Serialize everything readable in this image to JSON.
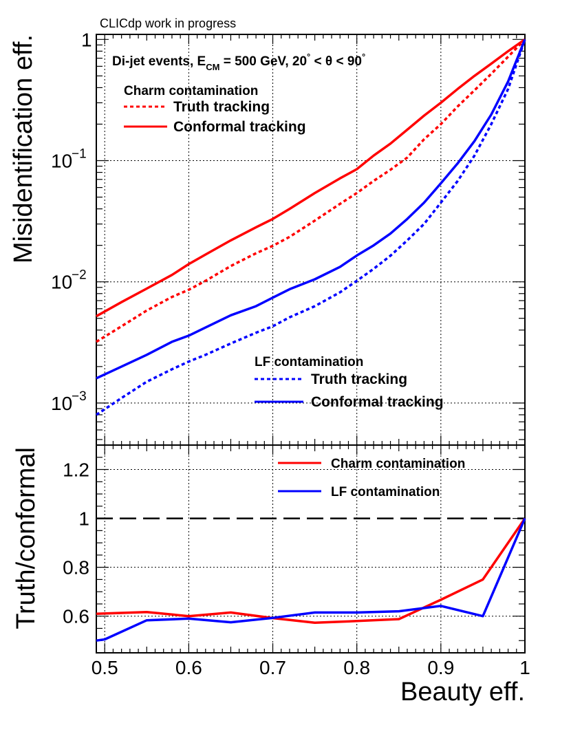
{
  "header": {
    "note": "CLICdp work in progress"
  },
  "colors": {
    "charm": "#ff0000",
    "lf": "#0000ff",
    "axis": "#000000",
    "grid": "#000000"
  },
  "chart_data": [
    {
      "type": "line",
      "panel": "top",
      "yscale": "log",
      "xlim": [
        0.49,
        1.0
      ],
      "ylim": [
        0.00045,
        1.1
      ],
      "xlabel": "",
      "ylabel": "Misidentification eff.",
      "grid": true,
      "x_ticks": [
        0.5,
        0.6,
        0.7,
        0.8,
        0.9,
        1.0
      ],
      "y_tick_labels": [
        {
          "value": 1,
          "mantissa": "1",
          "exp": ""
        },
        {
          "value": 0.1,
          "mantissa": "10",
          "exp": "−1"
        },
        {
          "value": 0.01,
          "mantissa": "10",
          "exp": "−2"
        },
        {
          "value": 0.001,
          "mantissa": "10",
          "exp": "−3"
        }
      ],
      "info": {
        "prefix": "Di-jet events, E",
        "sub": "CM",
        "mid": " = 500 GeV, 20",
        "deg1": "°",
        "lt": " < θ < 90",
        "deg2": "°"
      },
      "legends": [
        {
          "title": "Charm contamination",
          "position": "top-left",
          "entries": [
            {
              "label": "Truth tracking",
              "color": "#ff0000",
              "dashed": true
            },
            {
              "label": "Conformal tracking",
              "color": "#ff0000",
              "dashed": false
            }
          ]
        },
        {
          "title": "LF contamination",
          "position": "bottom-center",
          "entries": [
            {
              "label": "Truth tracking",
              "color": "#0000ff",
              "dashed": true
            },
            {
              "label": "Conformal tracking",
              "color": "#0000ff",
              "dashed": false
            }
          ]
        }
      ],
      "series": [
        {
          "name": "Charm conformal tracking",
          "color": "#ff0000",
          "dashed": false,
          "x": [
            0.49,
            0.52,
            0.55,
            0.58,
            0.6,
            0.62,
            0.65,
            0.68,
            0.7,
            0.72,
            0.75,
            0.78,
            0.8,
            0.82,
            0.84,
            0.86,
            0.88,
            0.9,
            0.92,
            0.94,
            0.96,
            0.98,
            1.0
          ],
          "y": [
            0.0052,
            0.0068,
            0.0088,
            0.0114,
            0.014,
            0.0168,
            0.022,
            0.0282,
            0.033,
            0.04,
            0.054,
            0.0715,
            0.085,
            0.11,
            0.138,
            0.18,
            0.235,
            0.3,
            0.39,
            0.5,
            0.63,
            0.8,
            1.0
          ]
        },
        {
          "name": "Charm truth tracking",
          "color": "#ff0000",
          "dashed": true,
          "x": [
            0.49,
            0.52,
            0.55,
            0.58,
            0.6,
            0.62,
            0.65,
            0.68,
            0.7,
            0.72,
            0.75,
            0.78,
            0.8,
            0.82,
            0.84,
            0.86,
            0.88,
            0.9,
            0.92,
            0.94,
            0.96,
            0.98,
            1.0
          ],
          "y": [
            0.0032,
            0.0043,
            0.0058,
            0.0075,
            0.0086,
            0.0102,
            0.0135,
            0.0172,
            0.0198,
            0.0235,
            0.032,
            0.044,
            0.054,
            0.068,
            0.084,
            0.106,
            0.15,
            0.2,
            0.28,
            0.38,
            0.52,
            0.72,
            1.0
          ]
        },
        {
          "name": "LF conformal tracking",
          "color": "#0000ff",
          "dashed": false,
          "x": [
            0.49,
            0.52,
            0.55,
            0.58,
            0.6,
            0.62,
            0.65,
            0.68,
            0.7,
            0.72,
            0.75,
            0.78,
            0.8,
            0.82,
            0.84,
            0.86,
            0.88,
            0.9,
            0.92,
            0.94,
            0.96,
            0.98,
            1.0
          ],
          "y": [
            0.0016,
            0.002,
            0.0025,
            0.0032,
            0.0036,
            0.0042,
            0.0053,
            0.0063,
            0.0074,
            0.0087,
            0.0105,
            0.0133,
            0.0165,
            0.02,
            0.025,
            0.033,
            0.045,
            0.065,
            0.095,
            0.145,
            0.24,
            0.45,
            1.0
          ]
        },
        {
          "name": "LF truth tracking",
          "color": "#0000ff",
          "dashed": true,
          "x": [
            0.49,
            0.52,
            0.55,
            0.58,
            0.6,
            0.62,
            0.65,
            0.68,
            0.7,
            0.72,
            0.75,
            0.78,
            0.8,
            0.82,
            0.84,
            0.86,
            0.88,
            0.9,
            0.92,
            0.94,
            0.96,
            0.98,
            1.0
          ],
          "y": [
            0.0008,
            0.0011,
            0.0015,
            0.0019,
            0.0022,
            0.0025,
            0.0031,
            0.0038,
            0.0043,
            0.0051,
            0.0063,
            0.0082,
            0.0102,
            0.0128,
            0.0164,
            0.022,
            0.03,
            0.045,
            0.068,
            0.11,
            0.2,
            0.39,
            1.0
          ]
        }
      ]
    },
    {
      "type": "line",
      "panel": "bottom",
      "yscale": "linear",
      "xlim": [
        0.49,
        1.0
      ],
      "ylim": [
        0.45,
        1.3
      ],
      "xlabel": "Beauty eff.",
      "ylabel": "Truth/conformal",
      "grid": true,
      "x_ticks": [
        0.5,
        0.6,
        0.7,
        0.8,
        0.9,
        1.0
      ],
      "x_tick_labels": [
        "0.5",
        "0.6",
        "0.7",
        "0.8",
        "0.9",
        "1"
      ],
      "y_ticks": [
        0.6,
        0.8,
        1.0,
        1.2
      ],
      "y_tick_labels": [
        "0.6",
        "0.8",
        "1",
        "1.2"
      ],
      "reference_line": 1.0,
      "legend": [
        {
          "label": "Charm contamination",
          "color": "#ff0000"
        },
        {
          "label": "LF contamination",
          "color": "#0000ff"
        }
      ],
      "series": [
        {
          "name": "Charm contamination",
          "color": "#ff0000",
          "x": [
            0.49,
            0.55,
            0.6,
            0.65,
            0.7,
            0.75,
            0.8,
            0.85,
            0.9,
            0.95,
            1.0
          ],
          "y": [
            0.61,
            0.617,
            0.6,
            0.615,
            0.592,
            0.573,
            0.58,
            0.588,
            0.667,
            0.75,
            1.0
          ]
        },
        {
          "name": "LF contamination",
          "color": "#0000ff",
          "x": [
            0.49,
            0.5,
            0.55,
            0.6,
            0.65,
            0.7,
            0.75,
            0.8,
            0.85,
            0.9,
            0.95,
            1.0
          ],
          "y": [
            0.5,
            0.505,
            0.583,
            0.59,
            0.575,
            0.593,
            0.615,
            0.615,
            0.62,
            0.642,
            0.6,
            1.0
          ]
        }
      ]
    }
  ]
}
